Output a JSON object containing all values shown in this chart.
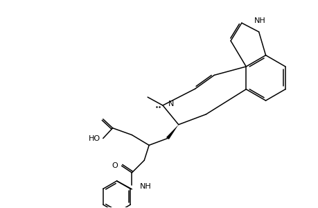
{
  "bg": "#ffffff",
  "lw": 1.1,
  "fs": 8.0,
  "figsize": [
    4.6,
    3.0
  ],
  "dpi": 100,
  "indole_nh_label": "NH",
  "ergoline_n_label": "N",
  "glycine_ho_label": "HO",
  "glycine_o_label": "O",
  "amide_o_label": "O",
  "amide_nh_label": "NH"
}
